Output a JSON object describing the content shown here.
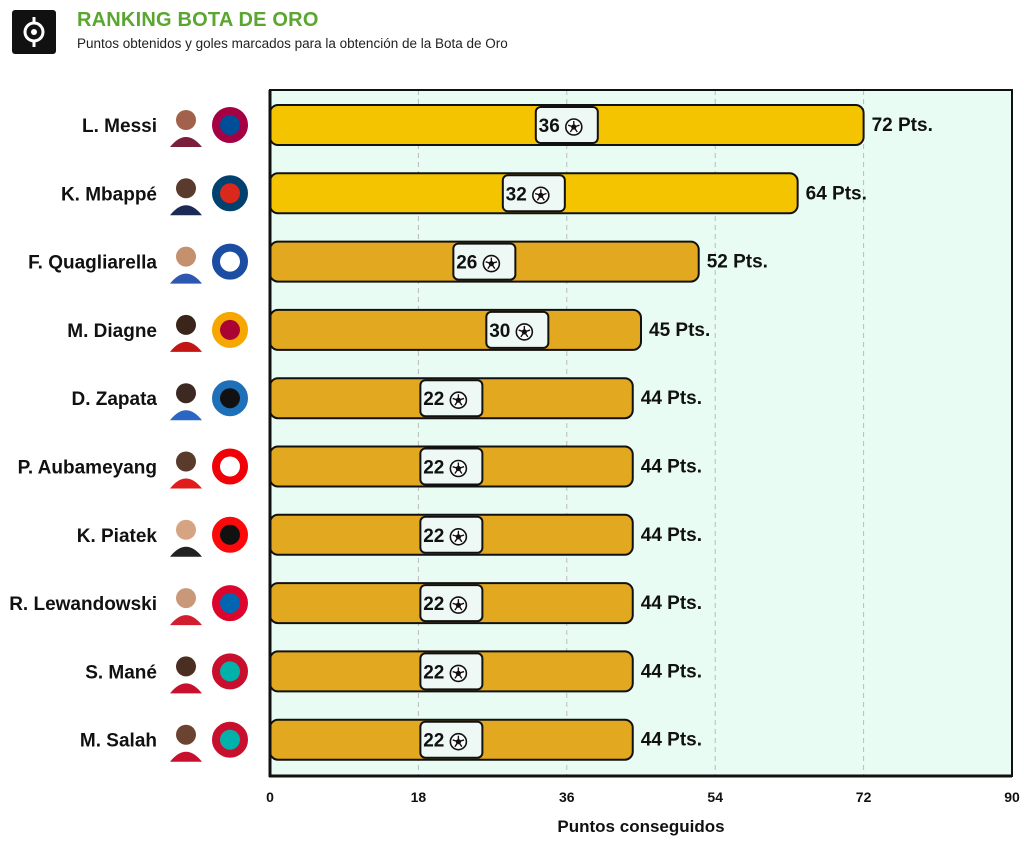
{
  "header": {
    "title": "RANKING BOTA DE ORO",
    "subtitle": "Puntos obtenidos y goles marcados para la obtención de la Bota de Oro"
  },
  "colors": {
    "title": "#5aa630",
    "bar_top": "#f5c400",
    "bar": "#e2a81f",
    "plot_bg": "#e9fcf4",
    "badge_bg": "#eef9f5",
    "border": "#111111"
  },
  "chart_data": {
    "type": "bar",
    "orientation": "horizontal",
    "categories": [
      "L. Messi",
      "K. Mbappé",
      "F. Quagliarella",
      "M. Diagne",
      "D. Zapata",
      "P. Aubameyang",
      "K. Piatek",
      "R. Lewandowski",
      "S. Mané",
      "M. Salah"
    ],
    "series": [
      {
        "name": "Pts.",
        "values": [
          72,
          64,
          52,
          45,
          44,
          44,
          44,
          44,
          44,
          44
        ]
      }
    ],
    "goals": [
      36,
      32,
      26,
      30,
      22,
      22,
      22,
      22,
      22,
      22
    ],
    "value_suffix": "Pts.",
    "club_icons": [
      "fc-barcelona-icon",
      "psg-icon",
      "sampdoria-icon",
      "galatasaray-icon",
      "atalanta-icon",
      "arsenal-icon",
      "ac-milan-icon",
      "bayern-icon",
      "liverpool-icon",
      "liverpool-icon"
    ],
    "xlabel": "Puntos conseguidos",
    "xlim": [
      0,
      90
    ],
    "xticks": [
      0,
      18,
      36,
      54,
      72,
      90
    ],
    "grid": true
  }
}
